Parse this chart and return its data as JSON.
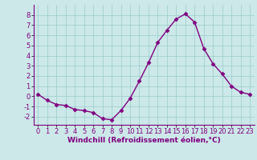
{
  "x": [
    0,
    1,
    2,
    3,
    4,
    5,
    6,
    7,
    8,
    9,
    10,
    11,
    12,
    13,
    14,
    15,
    16,
    17,
    18,
    19,
    20,
    21,
    22,
    23
  ],
  "y": [
    0.2,
    -0.4,
    -0.8,
    -0.9,
    -1.3,
    -1.4,
    -1.6,
    -2.2,
    -2.3,
    -1.4,
    -0.2,
    1.5,
    3.3,
    5.3,
    6.5,
    7.6,
    8.1,
    7.3,
    4.7,
    3.2,
    2.2,
    1.0,
    0.4,
    0.2
  ],
  "line_color": "#800080",
  "marker": "D",
  "marker_size": 2.5,
  "bg_color": "#cce8e8",
  "grid_color": "#99cccc",
  "xlabel": "Windchill (Refroidissement éolien,°C)",
  "xlim": [
    -0.5,
    23.5
  ],
  "ylim": [
    -2.8,
    9.0
  ],
  "yticks": [
    -2,
    -1,
    0,
    1,
    2,
    3,
    4,
    5,
    6,
    7,
    8
  ],
  "xticks": [
    0,
    1,
    2,
    3,
    4,
    5,
    6,
    7,
    8,
    9,
    10,
    11,
    12,
    13,
    14,
    15,
    16,
    17,
    18,
    19,
    20,
    21,
    22,
    23
  ],
  "line_color2": "#800080",
  "tick_label_color": "#800080",
  "xlabel_color": "#800080",
  "line_width": 1.0,
  "tick_fontsize": 6.0,
  "xlabel_fontsize": 6.5
}
